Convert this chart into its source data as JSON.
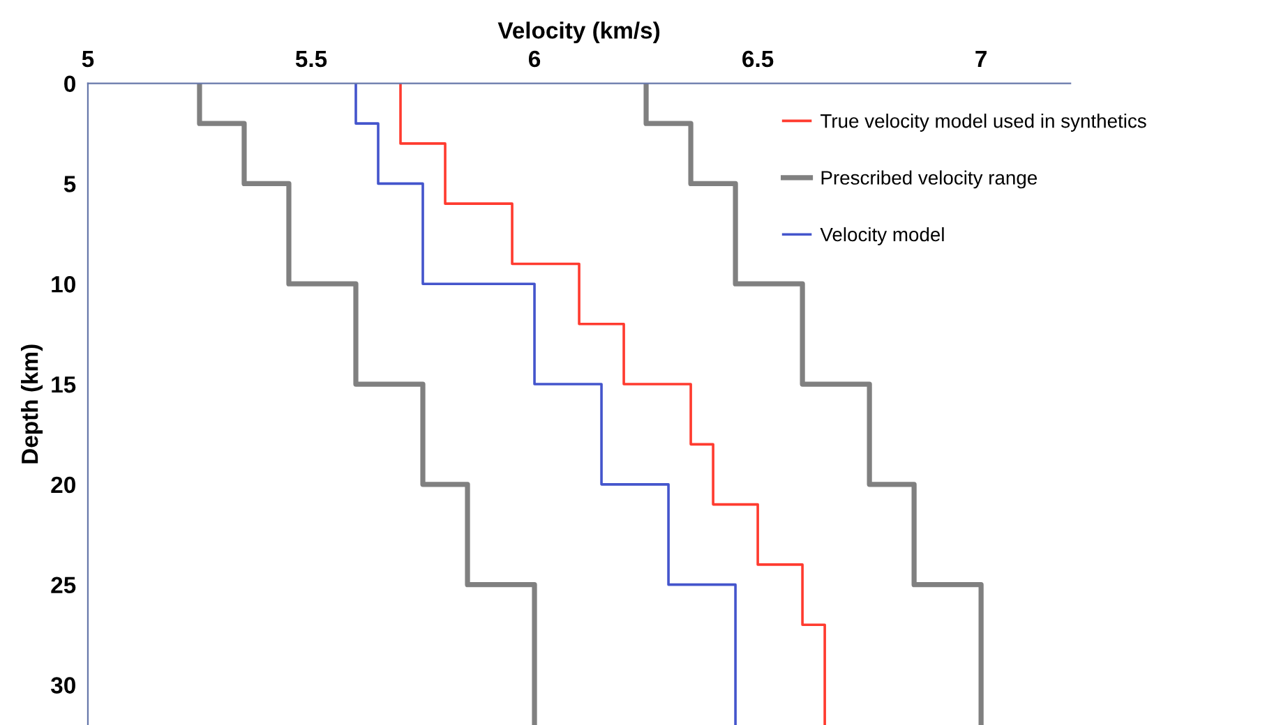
{
  "chart_data": {
    "type": "step",
    "orientation": "horizontal",
    "xlabel": "Velocity (km/s)",
    "ylabel": "Depth (km)",
    "xlim": [
      5,
      7.2
    ],
    "xticks": [
      5,
      5.5,
      6,
      6.5,
      7
    ],
    "ylim": [
      32,
      0
    ],
    "yticks": [
      0,
      5,
      10,
      15,
      20,
      25,
      30
    ],
    "grid": false,
    "legend": "top right",
    "marker": "none",
    "line_style": "solid",
    "series": [
      {
        "name": "True velocity model used in synthetics",
        "color": "#ff3b2f",
        "x": [
          0,
          3,
          6,
          9,
          12,
          15,
          18,
          21,
          24,
          27,
          32
        ],
        "values": [
          5.7,
          5.8,
          5.95,
          6.1,
          6.2,
          6.35,
          6.4,
          6.5,
          6.6,
          6.65,
          6.65
        ]
      },
      {
        "name": "Prescribed velocity range",
        "color": "#808080",
        "x": [
          0,
          2,
          5,
          10,
          15,
          20,
          25,
          32
        ],
        "values": [
          5.25,
          5.35,
          5.45,
          5.6,
          5.75,
          5.85,
          6.0,
          6.0
        ]
      },
      {
        "color": "#808080",
        "x": [
          0,
          2,
          5,
          10,
          15,
          20,
          25,
          32
        ],
        "values": [
          6.25,
          6.35,
          6.45,
          6.6,
          6.75,
          6.85,
          7.0,
          7.0
        ]
      },
      {
        "name": "Velocity model",
        "color": "#4455cc",
        "x": [
          0,
          2,
          5,
          10,
          15,
          20,
          25,
          32
        ],
        "values": [
          5.6,
          5.65,
          5.75,
          6.0,
          6.15,
          6.3,
          6.45,
          6.45
        ]
      }
    ]
  }
}
